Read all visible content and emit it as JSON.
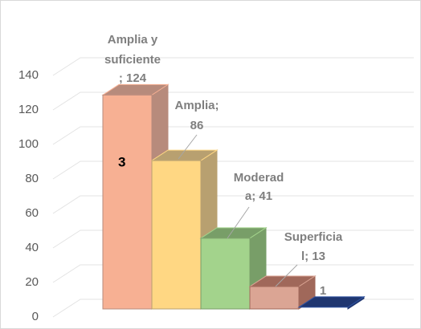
{
  "chart_data": {
    "type": "bar3d",
    "categories": [
      "Amplia y suficiente",
      "Amplia",
      "Moderada",
      "Superficial",
      null
    ],
    "values": [
      124,
      86,
      41,
      13,
      1
    ],
    "value_labels": [
      [
        "Amplia y",
        "suficiente",
        "; 124"
      ],
      [
        "Amplia;",
        "86"
      ],
      [
        "Moderad",
        "a; 41"
      ],
      [
        "Superficia",
        "l; 13"
      ],
      [
        "1"
      ]
    ],
    "colors": [
      "#f7b093",
      "#ffd783",
      "#a3d38c",
      "#dba594",
      "#2f52a0"
    ],
    "side_colors": [
      "#b78b7c",
      "#b8a070",
      "#789e68",
      "#a0685a",
      "#1f3670"
    ],
    "ylim": [
      0,
      140
    ],
    "yticks": [
      0,
      20,
      40,
      60,
      80,
      100,
      120,
      140
    ],
    "grid": true,
    "annotation": "3"
  }
}
